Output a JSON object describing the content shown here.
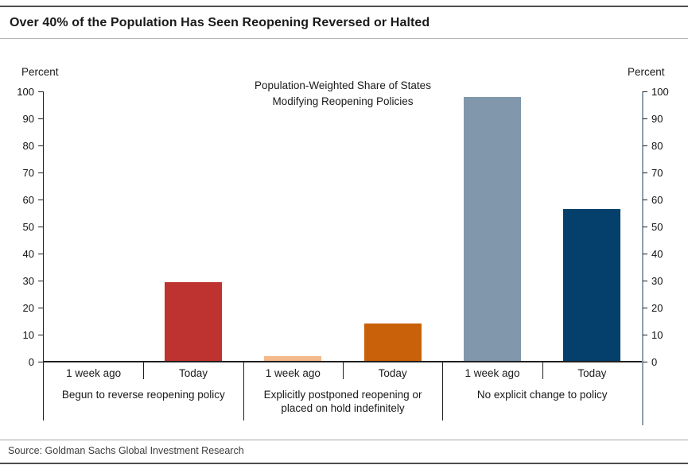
{
  "header": {
    "title": "Over 40% of the Population Has Seen Reopening Reversed or Halted"
  },
  "footer": {
    "source": "Source: Goldman Sachs Global Investment Research"
  },
  "colors": {
    "rule_dark": "#4d4d4d",
    "rule_light": "#b5b5b5",
    "axis": "#1f1f1f",
    "right_axis_line": "#8ba0b3",
    "bar_red": "#be3230",
    "bar_peach": "#f5ba8b",
    "bar_orange": "#c86109",
    "bar_grayblue": "#8097ac",
    "bar_navy": "#053f6b"
  },
  "chart_data": {
    "type": "bar",
    "title_lines": [
      "Population-Weighted Share of States",
      "Modifying Reopening Policies"
    ],
    "unit_label_left": "Percent",
    "unit_label_right": "Percent",
    "ylim": [
      0,
      100
    ],
    "yticks": [
      0,
      10,
      20,
      30,
      40,
      50,
      60,
      70,
      80,
      90,
      100
    ],
    "grid": false,
    "legend": "none",
    "categories": [
      "1 week ago",
      "Today"
    ],
    "groups": [
      {
        "label_lines": [
          "Begun to reverse reopening policy"
        ],
        "bars": [
          {
            "category": "1 week ago",
            "value": 0,
            "color": "#be3230"
          },
          {
            "category": "Today",
            "value": 29.5,
            "color": "#be3230"
          }
        ]
      },
      {
        "label_lines": [
          "Explicitly postponed reopening or",
          "placed on hold indefinitely"
        ],
        "bars": [
          {
            "category": "1 week ago",
            "value": 2,
            "color": "#f5ba8b"
          },
          {
            "category": "Today",
            "value": 14,
            "color": "#c86109"
          }
        ]
      },
      {
        "label_lines": [
          "No explicit change to policy"
        ],
        "bars": [
          {
            "category": "1 week ago",
            "value": 98,
            "color": "#8097ac"
          },
          {
            "category": "Today",
            "value": 56.5,
            "color": "#053f6b"
          }
        ]
      }
    ]
  }
}
